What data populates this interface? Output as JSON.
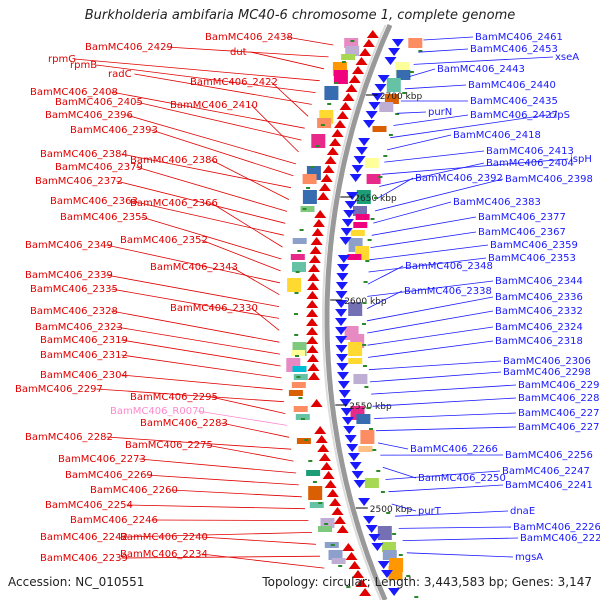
{
  "title": "Burkholderia ambifaria MC40-6 chromosome 1, complete genome",
  "footer": {
    "accession": "Accession: NC_010551",
    "topology": "Topology: circular; Length: 3,443,583 bp; Genes: 3,147"
  },
  "colors": {
    "forward": "#e00000",
    "reverse": "#1a1aff",
    "rna": "#ff88cc",
    "backbone": "#999999",
    "tick": "#2a8a2a"
  },
  "scale": [
    {
      "label": "2700 kbp"
    },
    {
      "label": "2650 kbp"
    },
    {
      "label": "2600 kbp"
    },
    {
      "label": "2550 kbp"
    },
    {
      "label": "2500 kbp"
    }
  ],
  "left_labels": [
    {
      "text": "BamMC406_2438"
    },
    {
      "text": "BamMC406_2429"
    },
    {
      "text": "dut"
    },
    {
      "text": "rpmG"
    },
    {
      "text": "rpmB"
    },
    {
      "text": "radC"
    },
    {
      "text": "BamMC406_2422"
    },
    {
      "text": "BamMC406_2408"
    },
    {
      "text": "BamMC406_2405"
    },
    {
      "text": "BamMC406_2410"
    },
    {
      "text": "BamMC406_2396"
    },
    {
      "text": "BamMC406_2393"
    },
    {
      "text": "BamMC406_2384"
    },
    {
      "text": "BamMC406_2386"
    },
    {
      "text": "BamMC406_2379"
    },
    {
      "text": "BamMC406_2372"
    },
    {
      "text": "BamMC406_2363"
    },
    {
      "text": "BamMC406_2366"
    },
    {
      "text": "BamMC406_2355"
    },
    {
      "text": "BamMC406_2352"
    },
    {
      "text": "BamMC406_2349"
    },
    {
      "text": "BamMC406_2343"
    },
    {
      "text": "BamMC406_2339"
    },
    {
      "text": "BamMC406_2335"
    },
    {
      "text": "BamMC406_2330"
    },
    {
      "text": "BamMC406_2328"
    },
    {
      "text": "BamMC406_2323"
    },
    {
      "text": "BamMC406_2319"
    },
    {
      "text": "BamMC406_2312"
    },
    {
      "text": "BamMC406_2304"
    },
    {
      "text": "BamMC406_2297"
    },
    {
      "text": "BamMC406_2295"
    },
    {
      "text": "BamMC406_R0070",
      "rna": true
    },
    {
      "text": "BamMC406_2283"
    },
    {
      "text": "BamMC406_2282"
    },
    {
      "text": "BamMC406_2275"
    },
    {
      "text": "BamMC406_2273"
    },
    {
      "text": "BamMC406_2269"
    },
    {
      "text": "BamMC406_2260"
    },
    {
      "text": "BamMC406_2254"
    },
    {
      "text": "BamMC406_2246"
    },
    {
      "text": "BamMC406_2242"
    },
    {
      "text": "BamMC406_2240"
    },
    {
      "text": "BamMC406_2239"
    },
    {
      "text": "BamMC406_2234"
    }
  ],
  "right_labels": [
    {
      "text": "BamMC406_2461"
    },
    {
      "text": "BamMC406_2453"
    },
    {
      "text": "xseA"
    },
    {
      "text": "BamMC406_2443"
    },
    {
      "text": "BamMC406_2440"
    },
    {
      "text": "BamMC406_2435"
    },
    {
      "text": "purN"
    },
    {
      "text": "BamMC406_2427"
    },
    {
      "text": "clpS"
    },
    {
      "text": "BamMC406_2418"
    },
    {
      "text": "BamMC406_2413"
    },
    {
      "text": "ispH"
    },
    {
      "text": "BamMC406_2404"
    },
    {
      "text": "BamMC406_2392"
    },
    {
      "text": "BamMC406_2398"
    },
    {
      "text": "BamMC406_2383"
    },
    {
      "text": "BamMC406_2377"
    },
    {
      "text": "BamMC406_2367"
    },
    {
      "text": "BamMC406_2359"
    },
    {
      "text": "BamMC406_2353"
    },
    {
      "text": "BamMC406_2348"
    },
    {
      "text": "BamMC406_2344"
    },
    {
      "text": "BamMC406_2338"
    },
    {
      "text": "BamMC406_2336"
    },
    {
      "text": "BamMC406_2332"
    },
    {
      "text": "BamMC406_2324"
    },
    {
      "text": "BamMC406_2318"
    },
    {
      "text": "BamMC406_2306"
    },
    {
      "text": "BamMC406_2298"
    },
    {
      "text": "BamMC406_2291"
    },
    {
      "text": "BamMC406_2284"
    },
    {
      "text": "BamMC406_2278"
    },
    {
      "text": "BamMC406_2274"
    },
    {
      "text": "BamMC406_2266"
    },
    {
      "text": "BamMC406_2256"
    },
    {
      "text": "BamMC406_2250"
    },
    {
      "text": "BamMC406_2247"
    },
    {
      "text": "BamMC406_2241"
    },
    {
      "text": "purT"
    },
    {
      "text": "dnaE"
    },
    {
      "text": "BamMC406_2226"
    },
    {
      "text": "BamMC406_2220"
    },
    {
      "text": "mgsA"
    }
  ]
}
